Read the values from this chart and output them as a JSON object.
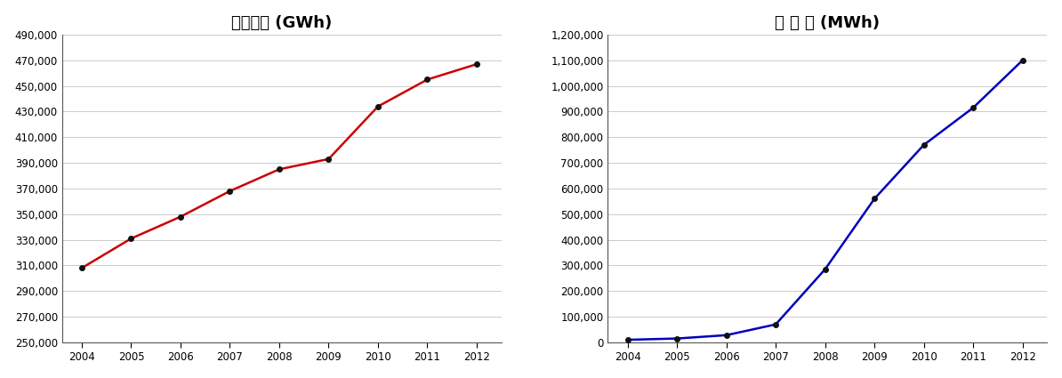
{
  "years": [
    2004,
    2005,
    2006,
    2007,
    2008,
    2009,
    2010,
    2011,
    2012
  ],
  "electricity_demand": [
    308000,
    331000,
    348000,
    368000,
    385000,
    393000,
    434000,
    455000,
    467000
  ],
  "solar_power": [
    10000,
    15000,
    28000,
    70000,
    285000,
    560000,
    770000,
    915000,
    1100000
  ],
  "title1": "전력수요 (GWh)",
  "title2": "태 양 광 (MWh)",
  "line_color1": "#cc0000",
  "line_color2": "#0000bb",
  "ylim1": [
    250000,
    490000
  ],
  "yticks1": [
    250000,
    270000,
    290000,
    310000,
    330000,
    350000,
    370000,
    390000,
    410000,
    430000,
    450000,
    470000,
    490000
  ],
  "ylim2": [
    0,
    1200000
  ],
  "yticks2": [
    0,
    100000,
    200000,
    300000,
    400000,
    500000,
    600000,
    700000,
    800000,
    900000,
    1000000,
    1100000,
    1200000
  ],
  "bg_color": "#ffffff",
  "grid_color": "#cccccc",
  "title_fontsize": 13,
  "tick_fontsize": 8.5,
  "marker": "o",
  "markersize": 4,
  "markercolor": "#111111",
  "linewidth": 1.8,
  "figsize": [
    11.94,
    4.25
  ],
  "dpi": 100
}
